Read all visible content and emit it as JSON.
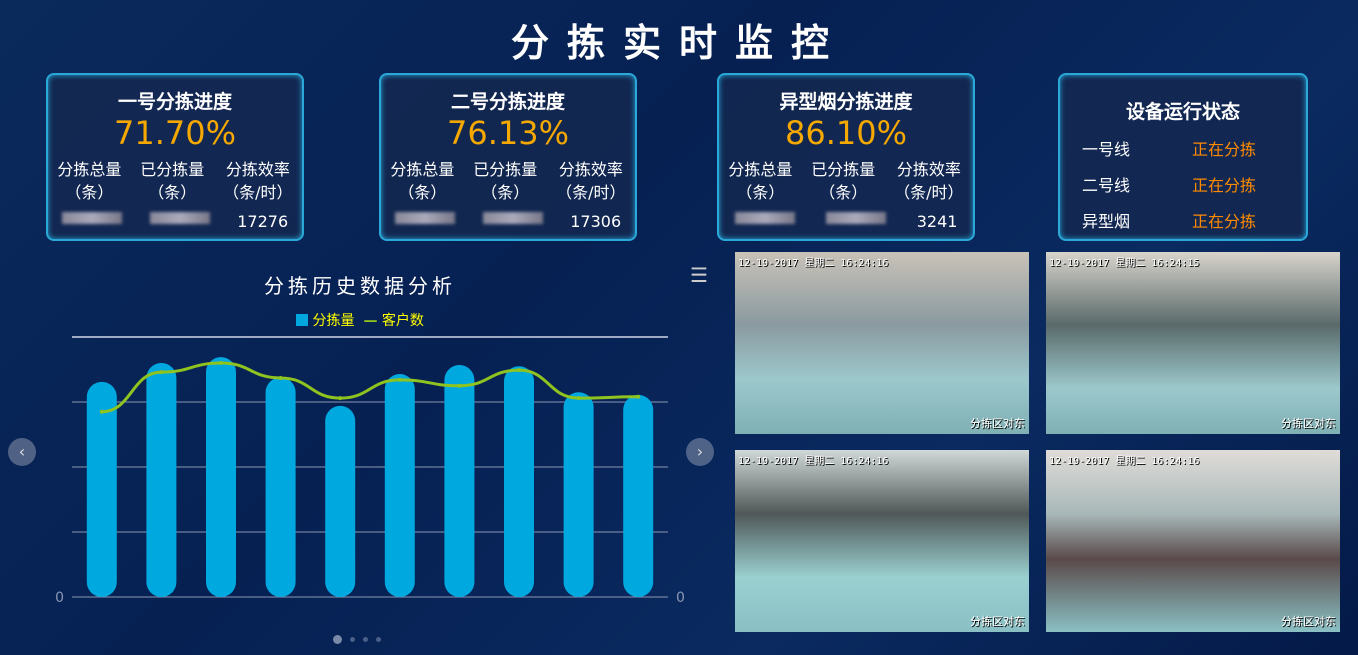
{
  "header": {
    "title": "分拣实时监控"
  },
  "cards": [
    {
      "title": "一号分拣进度",
      "percent": "71.70%",
      "col1": "分拣总量",
      "col2": "已分拣量",
      "col3": "分拣效率",
      "unit1": "（条）",
      "unit2": "（条）",
      "unit3": "（条/时）",
      "efficiency": "17276"
    },
    {
      "title": "二号分拣进度",
      "percent": "76.13%",
      "col1": "分拣总量",
      "col2": "已分拣量",
      "col3": "分拣效率",
      "unit1": "（条）",
      "unit2": "（条）",
      "unit3": "（条/时）",
      "efficiency": "17306"
    },
    {
      "title": "异型烟分拣进度",
      "percent": "86.10%",
      "col1": "分拣总量",
      "col2": "已分拣量",
      "col3": "分拣效率",
      "unit1": "（条）",
      "unit2": "（条）",
      "unit3": "（条/时）",
      "efficiency": "3241"
    }
  ],
  "status": {
    "title": "设备运行状态",
    "rows": [
      {
        "name": "一号线",
        "state": "正在分拣"
      },
      {
        "name": "二号线",
        "state": "正在分拣"
      },
      {
        "name": "异型烟",
        "state": "正在分拣"
      }
    ]
  },
  "chart_data": {
    "type": "bar",
    "title": "分拣历史数据分析",
    "legend": [
      "分拣量",
      "客户数"
    ],
    "legend_position": "top",
    "series": [
      {
        "name": "分拣量",
        "type": "bar",
        "values": [
          3.31,
          3.6,
          3.69,
          3.38,
          2.94,
          3.43,
          3.57,
          3.55,
          3.15,
          3.11
        ]
      },
      {
        "name": "客户数",
        "type": "line",
        "values": [
          2.85,
          3.46,
          3.6,
          3.37,
          3.06,
          3.34,
          3.25,
          3.49,
          3.06,
          3.08
        ]
      }
    ],
    "ylim": [
      0,
      4
    ],
    "y_zero_label": "0",
    "grid": true,
    "colors": {
      "bar": "#00a8e0",
      "line": "#8fc31f"
    }
  },
  "cameras": [
    {
      "timestamp": "12-19-2017 星期二 16:24:16",
      "caption": "分拣区对东"
    },
    {
      "timestamp": "12-19-2017 星期二 16:24:15",
      "caption": "分拣区对东"
    },
    {
      "timestamp": "12-19-2017 星期二 16:24:16",
      "caption": "分拣区对东"
    },
    {
      "timestamp": "12-19-2017 星期二 16:24:16",
      "caption": "分拣区对东"
    }
  ]
}
